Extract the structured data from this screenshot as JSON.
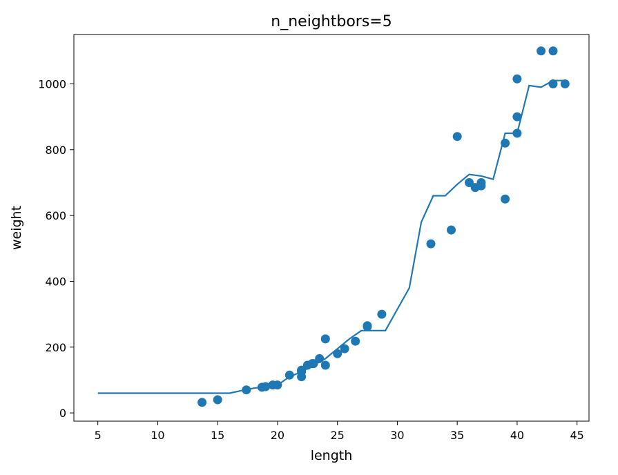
{
  "chart_data": {
    "type": "scatter",
    "title": "n_neightbors=5",
    "xlabel": "length",
    "ylabel": "weight",
    "xlim": [
      3.0,
      46.0
    ],
    "ylim": [
      -25,
      1150
    ],
    "xticks": [
      5,
      10,
      15,
      20,
      25,
      30,
      35,
      40,
      45
    ],
    "yticks": [
      0,
      200,
      400,
      600,
      800,
      1000
    ],
    "grid": false,
    "legend": "none",
    "color": "#1f77b4",
    "series": [
      {
        "kind": "scatter",
        "points": [
          [
            13.7,
            32
          ],
          [
            15.0,
            40
          ],
          [
            17.4,
            70
          ],
          [
            18.7,
            78
          ],
          [
            19.0,
            80
          ],
          [
            19.6,
            85
          ],
          [
            20.0,
            85
          ],
          [
            21.0,
            115
          ],
          [
            22.0,
            110
          ],
          [
            22.0,
            125
          ],
          [
            22.0,
            130
          ],
          [
            22.5,
            145
          ],
          [
            22.9,
            150
          ],
          [
            23.0,
            150
          ],
          [
            23.5,
            165
          ],
          [
            24.0,
            145
          ],
          [
            24.0,
            225
          ],
          [
            25.0,
            180
          ],
          [
            25.6,
            195
          ],
          [
            26.5,
            218
          ],
          [
            27.5,
            262
          ],
          [
            27.5,
            265
          ],
          [
            28.7,
            300
          ],
          [
            32.8,
            514
          ],
          [
            34.5,
            556
          ],
          [
            35.0,
            840
          ],
          [
            36.0,
            700
          ],
          [
            36.5,
            685
          ],
          [
            37.0,
            690
          ],
          [
            37.0,
            700
          ],
          [
            39.0,
            650
          ],
          [
            39.0,
            820
          ],
          [
            40.0,
            850
          ],
          [
            40.0,
            900
          ],
          [
            40.0,
            1015
          ],
          [
            42.0,
            1100
          ],
          [
            43.0,
            1000
          ],
          [
            43.0,
            1100
          ],
          [
            44.0,
            1000
          ]
        ]
      },
      {
        "kind": "line",
        "points": [
          [
            5,
            60
          ],
          [
            6,
            60
          ],
          [
            7,
            60
          ],
          [
            8,
            60
          ],
          [
            9,
            60
          ],
          [
            10,
            60
          ],
          [
            11,
            60
          ],
          [
            12,
            60
          ],
          [
            13,
            60
          ],
          [
            14,
            60
          ],
          [
            15,
            60
          ],
          [
            16,
            60
          ],
          [
            17,
            68
          ],
          [
            18,
            75
          ],
          [
            19,
            80
          ],
          [
            20,
            85
          ],
          [
            21,
            110
          ],
          [
            22,
            125
          ],
          [
            23,
            145
          ],
          [
            24,
            165
          ],
          [
            25,
            195
          ],
          [
            26,
            225
          ],
          [
            27,
            250
          ],
          [
            28,
            250
          ],
          [
            29,
            250
          ],
          [
            30,
            315
          ],
          [
            31,
            380
          ],
          [
            32,
            580
          ],
          [
            33,
            660
          ],
          [
            34,
            660
          ],
          [
            35,
            695
          ],
          [
            36,
            725
          ],
          [
            37,
            720
          ],
          [
            38,
            710
          ],
          [
            39,
            850
          ],
          [
            40,
            850
          ],
          [
            41,
            995
          ],
          [
            42,
            990
          ],
          [
            43,
            1010
          ],
          [
            44,
            1010
          ]
        ]
      }
    ]
  }
}
